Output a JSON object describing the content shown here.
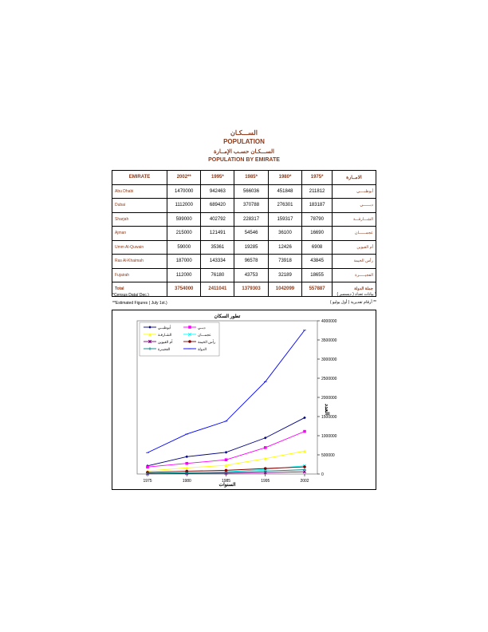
{
  "header": {
    "title_ar": "الســـكـان",
    "title_en": "POPULATION",
    "subtitle_ar": "الســـكـان حسـب الإمــارة",
    "subtitle_en": "POPULATION BY EMIRATE"
  },
  "table": {
    "columns": [
      "EMIRATE",
      "2002**",
      "1995*",
      "1985*",
      "1980*",
      "1975*",
      "الامــارة"
    ],
    "rows": [
      {
        "en": "Abu Dhabi",
        "values": [
          "1470000",
          "942463",
          "566036",
          "451848",
          "211812"
        ],
        "ar": "أبوظبــــي"
      },
      {
        "en": "Dubai",
        "values": [
          "1112000",
          "689420",
          "370788",
          "276301",
          "183187"
        ],
        "ar": "دبــــــي"
      },
      {
        "en": "Sharjah",
        "values": [
          "599000",
          "402792",
          "228317",
          "159317",
          "78790"
        ],
        "ar": "الشـــارقـــة"
      },
      {
        "en": "Ajman",
        "values": [
          "215000",
          "121491",
          "54546",
          "36100",
          "16690"
        ],
        "ar": "عجمــــــان"
      },
      {
        "en": "Umm Al-Quwain",
        "values": [
          "59000",
          "35361",
          "19285",
          "12426",
          "6908"
        ],
        "ar": "أم القيوين"
      },
      {
        "en": "Ras Al-Khaimah",
        "values": [
          "187000",
          "143334",
          "96578",
          "73918",
          "43845"
        ],
        "ar": "رأس الخيمة"
      },
      {
        "en": "Fujairah",
        "values": [
          "112000",
          "76180",
          "43753",
          "32189",
          "18655"
        ],
        "ar": "الفجيـــــرة"
      }
    ],
    "total": {
      "en": "Total",
      "values": [
        "3754000",
        "2411041",
        "1379303",
        "1042099",
        "557887"
      ],
      "ar": "جملة الدولة"
    }
  },
  "notes": {
    "en1": "*Census Data( Dec.)",
    "en2": "**Estimated Figures ( July 1st.)",
    "ar1": "* بيانات تعداد ( ديسمبر )",
    "ar2": "** أرقام تقديرية ( أول يوليو )"
  },
  "chart_data": {
    "type": "line",
    "title": "تطور السكان",
    "xlabel": "السنوات",
    "ylabel": "العدد",
    "x": [
      "1975",
      "1980",
      "1985",
      "1995",
      "2002"
    ],
    "ylim": [
      0,
      4000000
    ],
    "yticks": [
      "0",
      "500000",
      "1000000",
      "1500000",
      "2000000",
      "2500000",
      "3000000",
      "3500000",
      "4000000"
    ],
    "grid": false,
    "legend_position": "top-left",
    "series": [
      {
        "name": "أبوظبــي",
        "color": "#000080",
        "marker": "diamond",
        "values": [
          211812,
          451848,
          566036,
          942463,
          1470000
        ]
      },
      {
        "name": "دبــي",
        "color": "#ff00ff",
        "marker": "square",
        "values": [
          183187,
          276301,
          370788,
          689420,
          1112000
        ]
      },
      {
        "name": "الشـارقـة",
        "color": "#ffff00",
        "marker": "triangle",
        "values": [
          78790,
          159317,
          228317,
          402792,
          599000
        ]
      },
      {
        "name": "عجمـــان",
        "color": "#00ffff",
        "marker": "x",
        "values": [
          16690,
          36100,
          54546,
          121491,
          215000
        ]
      },
      {
        "name": "أم القيوين",
        "color": "#800080",
        "marker": "star",
        "values": [
          6908,
          12426,
          19285,
          35361,
          59000
        ]
      },
      {
        "name": "رأس الخيمة",
        "color": "#800000",
        "marker": "circle",
        "values": [
          43845,
          73918,
          96578,
          143334,
          187000
        ]
      },
      {
        "name": "الفجيـرة",
        "color": "#008080",
        "marker": "plus",
        "values": [
          18655,
          32189,
          43753,
          76180,
          112000
        ]
      },
      {
        "name": "الدولة",
        "color": "#0000ff",
        "marker": "dash",
        "values": [
          557887,
          1042099,
          1379303,
          2411041,
          3754000
        ]
      }
    ]
  }
}
